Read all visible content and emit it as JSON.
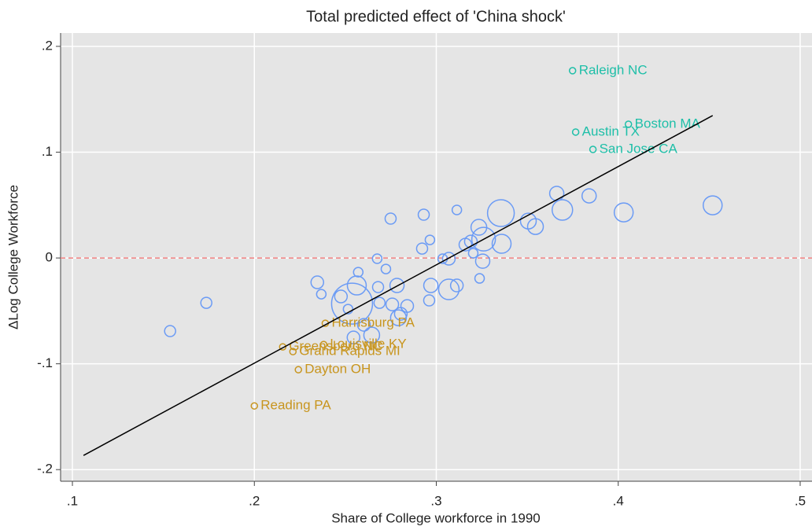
{
  "chart_data": {
    "type": "scatter",
    "title": "Total predicted effect of 'China shock'",
    "x_label": "Share of College workforce in 1990",
    "y_label": "ΔLog College Workforce",
    "xlim": [
      0.0935,
      0.5065
    ],
    "ylim": [
      -0.211,
      0.2126
    ],
    "xticks": [
      {
        "value": 0.1,
        "label": ".1"
      },
      {
        "value": 0.2,
        "label": ".2"
      },
      {
        "value": 0.3,
        "label": ".3"
      },
      {
        "value": 0.4,
        "label": ".4"
      },
      {
        "value": 0.5,
        "label": ".5"
      }
    ],
    "yticks": [
      {
        "value": -0.2,
        "label": "-.2"
      },
      {
        "value": -0.1,
        "label": "-.1"
      },
      0,
      {
        "value": 0.1,
        "label": ".1"
      },
      {
        "value": 0.2,
        "label": ".2"
      }
    ],
    "grid": true,
    "background": "#e5e5e5",
    "series": [
      {
        "color": "#6b9bf5",
        "x": [
          0.1537,
          0.1736,
          0.2346,
          0.2368,
          0.2476,
          0.2515,
          0.2545,
          0.2563,
          0.2571,
          0.2537,
          0.2602,
          0.2645,
          0.2675,
          0.268,
          0.2688,
          0.2723,
          0.2749,
          0.2758,
          0.2784,
          0.2792,
          0.2805,
          0.284,
          0.2931,
          0.2922,
          0.2965,
          0.2961,
          0.297,
          0.3035,
          0.3069,
          0.3069,
          0.3113,
          0.3113,
          0.316,
          0.319,
          0.3203,
          0.3234,
          0.3238,
          0.3255,
          0.326,
          0.3355,
          0.3359,
          0.3506,
          0.3545,
          0.3662,
          0.3693,
          0.384,
          0.403,
          0.4519
        ],
        "y": [
          -0.0691,
          -0.0424,
          -0.023,
          -0.0342,
          -0.0364,
          -0.0483,
          -0.0751,
          -0.026,
          -0.0134,
          -0.0431,
          -0.0632,
          -0.0729,
          -0.0007,
          -0.0275,
          -0.0424,
          -0.0104,
          0.0372,
          -0.0439,
          -0.026,
          -0.0565,
          -0.0528,
          -0.0454,
          0.0409,
          0.0089,
          0.0171,
          -0.0401,
          -0.026,
          -0.0007,
          -0.0007,
          -0.0297,
          -0.026,
          0.0454,
          0.0126,
          0.0156,
          0.0045,
          0.029,
          -0.0193,
          -0.003,
          0.0178,
          0.0424,
          0.0134,
          0.0349,
          0.0297,
          0.061,
          0.0454,
          0.0587,
          0.0431,
          0.0498
        ],
        "sizes": [
          7,
          7,
          8,
          6,
          8,
          6,
          8,
          12,
          6,
          26,
          8,
          10,
          6,
          7,
          7,
          6,
          7,
          8,
          9,
          10,
          8,
          8,
          7,
          7,
          6,
          7,
          9,
          6,
          8,
          13,
          8,
          6,
          8,
          8,
          6,
          10,
          6,
          9,
          15,
          17,
          12,
          10,
          10,
          9,
          13,
          9,
          12,
          12
        ]
      },
      {
        "color": "#1ebfa8",
        "x": [
          0.3749,
          0.3766,
          0.4056,
          0.3861
        ],
        "y": [
          0.177,
          0.119,
          0.1264,
          0.1026
        ],
        "labels": [
          "Raleigh NC",
          "Austin TX",
          "Boston MA",
          "San Jose CA"
        ]
      },
      {
        "color": "#c8951e",
        "x": [
          0.239,
          0.2156,
          0.2381,
          0.2212,
          0.2242,
          0.2
        ],
        "y": [
          -0.0617,
          -0.084,
          -0.0818,
          -0.0885,
          -0.1056,
          -0.1398
        ],
        "labels": [
          "Harrisburg PA",
          "Greensboro NC",
          "Louisville KY",
          "Grand Rapids MI",
          "Dayton OH",
          "Reading PA"
        ]
      }
    ],
    "fit_line": {
      "color": "#000000",
      "x": [
        0.1061,
        0.4519
      ],
      "y": [
        -0.1866,
        0.1346
      ]
    },
    "hline": {
      "value": 0,
      "color": "#f08080"
    }
  }
}
